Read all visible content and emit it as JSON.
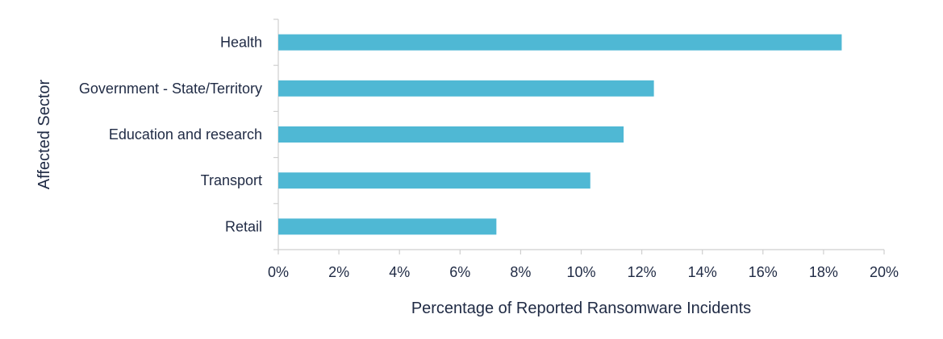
{
  "chart_data": {
    "type": "bar",
    "orientation": "horizontal",
    "categories": [
      "Health",
      "Government - State/Territory",
      "Education and research",
      "Transport",
      "Retail"
    ],
    "values": [
      18.6,
      12.4,
      11.4,
      10.3,
      7.2
    ],
    "xlabel": "Percentage of Reported Ransomware Incidents",
    "ylabel": "Affected Sector",
    "xlim": [
      0,
      20
    ],
    "x_ticks": [
      0,
      2,
      4,
      6,
      8,
      10,
      12,
      14,
      16,
      18,
      20
    ],
    "x_tick_labels": [
      "0%",
      "2%",
      "4%",
      "6%",
      "8%",
      "10%",
      "12%",
      "14%",
      "16%",
      "18%",
      "20%"
    ],
    "grid": false,
    "legend": "none",
    "bar_color": "#4fb8d4"
  }
}
